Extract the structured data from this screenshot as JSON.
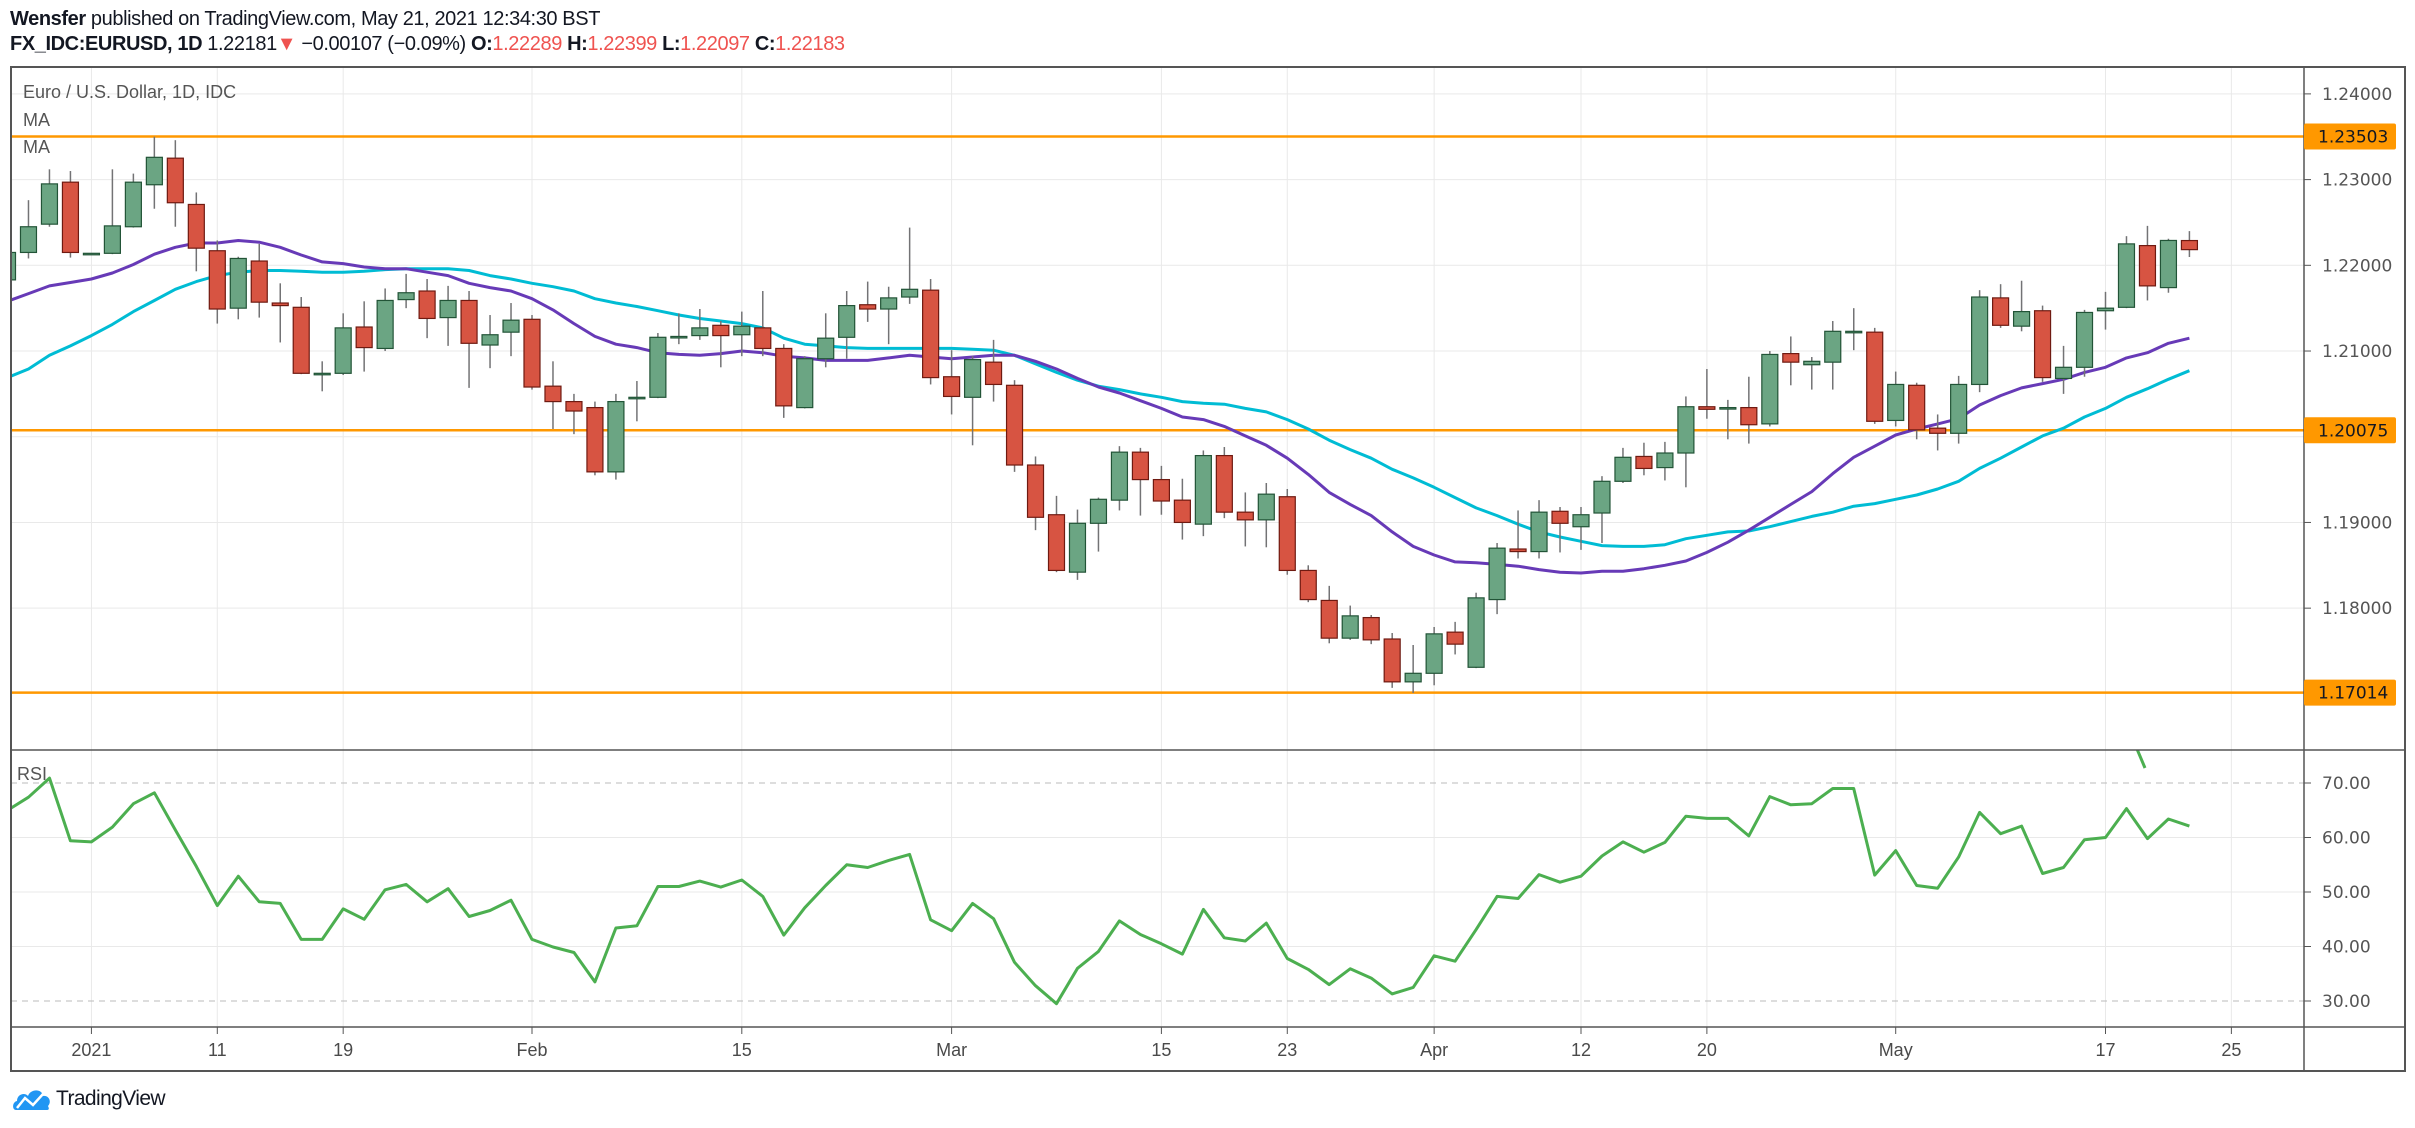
{
  "header": {
    "author": "Wensfer",
    "published": "published on TradingView.com, May 21, 2021 12:34:30 BST",
    "symbol": "FX_IDC:EURUSD, 1D",
    "last": "1.22181",
    "change": "−0.00107 (−0.09%)",
    "o_label": "O:",
    "o_value": "1.22289",
    "h_label": "H:",
    "h_value": "1.22399",
    "l_label": "L:",
    "l_value": "1.22097",
    "c_label": "C:",
    "c_value": "1.22183",
    "direction_icon": "triangle-down-icon"
  },
  "legend": {
    "title": "Euro / U.S. Dollar, 1D, IDC",
    "ma1": "MA",
    "ma2": "MA",
    "rsi": "RSI"
  },
  "footer": {
    "brand": "TradingView"
  },
  "colors": {
    "up": "#6ba583",
    "up_border": "#225437",
    "down": "#d75442",
    "down_border": "#6f1a11",
    "wick": "#737375",
    "ma1": "#673ab7",
    "ma2": "#00bcd4",
    "level": "#ff9800",
    "rsi": "#4caf50",
    "grid": "#e9e9e9",
    "axis": "#555555"
  },
  "chart_data": {
    "type": "candlestick",
    "title": "Euro / U.S. Dollar, 1D, IDC",
    "price_axis": {
      "ylim": [
        1.1665,
        1.2445
      ],
      "gridlines": [
        1.18,
        1.19,
        1.2,
        1.21,
        1.22,
        1.23,
        1.24
      ],
      "tick_labels": [
        {
          "value": 1.24,
          "label": "1.24000"
        },
        {
          "value": 1.23,
          "label": "1.23000"
        },
        {
          "value": 1.22,
          "label": "1.22000"
        },
        {
          "value": 1.21,
          "label": "1.21000"
        },
        {
          "value": 1.19,
          "label": "1.19000"
        },
        {
          "value": 1.18,
          "label": "1.18000"
        }
      ]
    },
    "horizontal_levels": [
      {
        "value": 1.23503,
        "label": "1.23503"
      },
      {
        "value": 1.20075,
        "label": "1.20075"
      },
      {
        "value": 1.17014,
        "label": "1.17014"
      }
    ],
    "time_axis": {
      "ticks": [
        {
          "label": "2021",
          "date": "2021-01-01"
        },
        {
          "label": "11",
          "date": "2021-01-11"
        },
        {
          "label": "19",
          "date": "2021-01-19"
        },
        {
          "label": "Feb",
          "date": "2021-02-01"
        },
        {
          "label": "15",
          "date": "2021-02-15"
        },
        {
          "label": "Mar",
          "date": "2021-03-01"
        },
        {
          "label": "15",
          "date": "2021-03-15"
        },
        {
          "label": "23",
          "date": "2021-03-23"
        },
        {
          "label": "Apr",
          "date": "2021-04-01"
        },
        {
          "label": "12",
          "date": "2021-04-12"
        },
        {
          "label": "20",
          "date": "2021-04-20"
        },
        {
          "label": "May",
          "date": "2021-05-03"
        },
        {
          "label": "17",
          "date": "2021-05-17"
        },
        {
          "label": "25",
          "date": "2021-05-25"
        }
      ]
    },
    "candle_fields": [
      "date",
      "open",
      "high",
      "low",
      "close"
    ],
    "candles": [
      [
        "2020-12-28",
        1.2183,
        1.222,
        1.218,
        1.2215
      ],
      [
        "2020-12-29",
        1.2215,
        1.2276,
        1.2208,
        1.2245
      ],
      [
        "2020-12-30",
        1.2248,
        1.2312,
        1.2245,
        1.2295
      ],
      [
        "2020-12-31",
        1.2297,
        1.231,
        1.2209,
        1.2215
      ],
      [
        "2021-01-01",
        1.2214,
        1.2214,
        1.2214,
        1.2214
      ],
      [
        "2021-01-04",
        1.2214,
        1.2312,
        1.2213,
        1.2246
      ],
      [
        "2021-01-05",
        1.2245,
        1.2307,
        1.2244,
        1.2297
      ],
      [
        "2021-01-06",
        1.2294,
        1.235,
        1.2266,
        1.2326
      ],
      [
        "2021-01-07",
        1.2325,
        1.2346,
        1.2245,
        1.2273
      ],
      [
        "2021-01-08",
        1.2271,
        1.2285,
        1.2193,
        1.222
      ],
      [
        "2021-01-11",
        1.2217,
        1.2229,
        1.2132,
        1.2149
      ],
      [
        "2021-01-12",
        1.215,
        1.221,
        1.2137,
        1.2208
      ],
      [
        "2021-01-13",
        1.2205,
        1.2225,
        1.2139,
        1.2157
      ],
      [
        "2021-01-14",
        1.2156,
        1.2179,
        1.211,
        1.2153
      ],
      [
        "2021-01-15",
        1.2151,
        1.2163,
        1.2073,
        1.2074
      ],
      [
        "2021-01-18",
        1.2074,
        1.2088,
        1.2053,
        1.2074
      ],
      [
        "2021-01-19",
        1.2074,
        1.2144,
        1.2072,
        1.2127
      ],
      [
        "2021-01-20",
        1.2128,
        1.2158,
        1.2076,
        1.2104
      ],
      [
        "2021-01-21",
        1.2103,
        1.2173,
        1.21,
        1.2159
      ],
      [
        "2021-01-22",
        1.216,
        1.219,
        1.215,
        1.2168
      ],
      [
        "2021-01-25",
        1.217,
        1.2184,
        1.2115,
        1.2138
      ],
      [
        "2021-01-26",
        1.2139,
        1.2176,
        1.2106,
        1.2159
      ],
      [
        "2021-01-27",
        1.2159,
        1.217,
        1.2057,
        1.2109
      ],
      [
        "2021-01-28",
        1.2107,
        1.2142,
        1.208,
        1.2119
      ],
      [
        "2021-01-29",
        1.2122,
        1.2156,
        1.2094,
        1.2136
      ],
      [
        "2021-02-01",
        1.2137,
        1.2142,
        1.2055,
        1.2058
      ],
      [
        "2021-02-02",
        1.2059,
        1.2088,
        1.2009,
        1.2041
      ],
      [
        "2021-02-03",
        1.2041,
        1.205,
        1.2003,
        1.203
      ],
      [
        "2021-02-04",
        1.2034,
        1.2041,
        1.1955,
        1.1959
      ],
      [
        "2021-02-05",
        1.1959,
        1.205,
        1.195,
        1.2041
      ],
      [
        "2021-02-08",
        1.2046,
        1.2065,
        1.2018,
        1.2046
      ],
      [
        "2021-02-09",
        1.2046,
        1.2121,
        1.2045,
        1.2116
      ],
      [
        "2021-02-10",
        1.2117,
        1.2144,
        1.2108,
        1.2117
      ],
      [
        "2021-02-11",
        1.2118,
        1.2149,
        1.2113,
        1.2127
      ],
      [
        "2021-02-12",
        1.213,
        1.2135,
        1.2081,
        1.2118
      ],
      [
        "2021-02-15",
        1.2119,
        1.2146,
        1.2094,
        1.2129
      ],
      [
        "2021-02-16",
        1.2127,
        1.217,
        1.2094,
        1.2103
      ],
      [
        "2021-02-17",
        1.2103,
        1.2108,
        1.2022,
        1.2036
      ],
      [
        "2021-02-18",
        1.2034,
        1.2094,
        1.2033,
        1.2091
      ],
      [
        "2021-02-19",
        1.2091,
        1.2144,
        1.2081,
        1.2115
      ],
      [
        "2021-02-22",
        1.2116,
        1.217,
        1.2091,
        1.2153
      ],
      [
        "2021-02-23",
        1.2154,
        1.2181,
        1.2134,
        1.2149
      ],
      [
        "2021-02-24",
        1.2149,
        1.2175,
        1.2108,
        1.2162
      ],
      [
        "2021-02-25",
        1.2163,
        1.2244,
        1.2155,
        1.2172
      ],
      [
        "2021-02-26",
        1.2171,
        1.2184,
        1.2061,
        1.2069
      ],
      [
        "2021-03-01",
        1.207,
        1.2101,
        1.2026,
        1.2047
      ],
      [
        "2021-03-02",
        1.2046,
        1.2094,
        1.199,
        1.209
      ],
      [
        "2021-03-03",
        1.2087,
        1.2113,
        1.2041,
        1.2061
      ],
      [
        "2021-03-04",
        1.206,
        1.2066,
        1.1959,
        1.1967
      ],
      [
        "2021-03-05",
        1.1967,
        1.1977,
        1.1891,
        1.1906
      ],
      [
        "2021-03-08",
        1.1909,
        1.1931,
        1.1842,
        1.1844
      ],
      [
        "2021-03-09",
        1.1842,
        1.1915,
        1.1833,
        1.1899
      ],
      [
        "2021-03-10",
        1.1899,
        1.1929,
        1.1866,
        1.1927
      ],
      [
        "2021-03-11",
        1.1926,
        1.1989,
        1.1914,
        1.1982
      ],
      [
        "2021-03-12",
        1.1982,
        1.1987,
        1.1908,
        1.195
      ],
      [
        "2021-03-15",
        1.195,
        1.1966,
        1.1909,
        1.1925
      ],
      [
        "2021-03-16",
        1.1926,
        1.1951,
        1.188,
        1.19
      ],
      [
        "2021-03-17",
        1.1898,
        1.1984,
        1.1884,
        1.1978
      ],
      [
        "2021-03-18",
        1.1978,
        1.1988,
        1.1905,
        1.1912
      ],
      [
        "2021-03-19",
        1.1912,
        1.1935,
        1.1872,
        1.1903
      ],
      [
        "2021-03-22",
        1.1903,
        1.1946,
        1.1871,
        1.1933
      ],
      [
        "2021-03-23",
        1.193,
        1.1939,
        1.1839,
        1.1844
      ],
      [
        "2021-03-24",
        1.1844,
        1.185,
        1.1807,
        1.181
      ],
      [
        "2021-03-25",
        1.1809,
        1.1826,
        1.1759,
        1.1765
      ],
      [
        "2021-03-26",
        1.1765,
        1.1803,
        1.1763,
        1.1791
      ],
      [
        "2021-03-29",
        1.1789,
        1.1792,
        1.1758,
        1.1763
      ],
      [
        "2021-03-30",
        1.1764,
        1.1771,
        1.1707,
        1.1714
      ],
      [
        "2021-03-31",
        1.1714,
        1.1757,
        1.1701,
        1.1724
      ],
      [
        "2021-04-01",
        1.1724,
        1.1778,
        1.171,
        1.177
      ],
      [
        "2021-04-02",
        1.1772,
        1.1784,
        1.1746,
        1.1758
      ],
      [
        "2021-04-05",
        1.1731,
        1.1818,
        1.173,
        1.1812
      ],
      [
        "2021-04-06",
        1.181,
        1.1876,
        1.1793,
        1.187
      ],
      [
        "2021-04-07",
        1.1869,
        1.1914,
        1.1858,
        1.1866
      ],
      [
        "2021-04-08",
        1.1866,
        1.1926,
        1.1858,
        1.1912
      ],
      [
        "2021-04-09",
        1.1913,
        1.1918,
        1.1865,
        1.1899
      ],
      [
        "2021-04-12",
        1.1895,
        1.1918,
        1.1868,
        1.1909
      ],
      [
        "2021-04-13",
        1.1911,
        1.1954,
        1.1876,
        1.1948
      ],
      [
        "2021-04-14",
        1.1948,
        1.1987,
        1.1946,
        1.1976
      ],
      [
        "2021-04-15",
        1.1977,
        1.1993,
        1.1955,
        1.1963
      ],
      [
        "2021-04-16",
        1.1964,
        1.1994,
        1.1949,
        1.1981
      ],
      [
        "2021-04-19",
        1.1981,
        1.2047,
        1.1941,
        1.2035
      ],
      [
        "2021-04-20",
        1.2035,
        1.2079,
        1.2021,
        1.2032
      ],
      [
        "2021-04-21",
        1.2034,
        1.2043,
        1.1997,
        1.2034
      ],
      [
        "2021-04-22",
        1.2034,
        1.207,
        1.1992,
        1.2014
      ],
      [
        "2021-04-23",
        1.2015,
        1.21,
        1.2012,
        1.2096
      ],
      [
        "2021-04-26",
        1.2097,
        1.2117,
        1.206,
        1.2087
      ],
      [
        "2021-04-27",
        1.2084,
        1.2093,
        1.2055,
        1.2088
      ],
      [
        "2021-04-28",
        1.2087,
        1.2135,
        1.2055,
        1.2123
      ],
      [
        "2021-04-29",
        1.2123,
        1.215,
        1.2101,
        1.2123
      ],
      [
        "2021-04-30",
        1.2122,
        1.2127,
        1.2015,
        1.2018
      ],
      [
        "2021-05-03",
        1.2019,
        1.2076,
        1.2012,
        1.2061
      ],
      [
        "2021-05-04",
        1.206,
        1.2063,
        1.1997,
        1.2008
      ],
      [
        "2021-05-05",
        1.201,
        1.2026,
        1.1984,
        1.2004
      ],
      [
        "2021-05-06",
        1.2004,
        1.2071,
        1.1992,
        1.2061
      ],
      [
        "2021-05-07",
        1.2061,
        1.2171,
        1.2052,
        1.2163
      ],
      [
        "2021-05-10",
        1.2162,
        1.2178,
        1.2127,
        1.213
      ],
      [
        "2021-05-11",
        1.2129,
        1.2182,
        1.2123,
        1.2146
      ],
      [
        "2021-05-12",
        1.2147,
        1.2153,
        1.2064,
        1.2069
      ],
      [
        "2021-05-13",
        1.2068,
        1.2106,
        1.205,
        1.2081
      ],
      [
        "2021-05-14",
        1.2081,
        1.2148,
        1.207,
        1.2145
      ],
      [
        "2021-05-17",
        1.2147,
        1.2169,
        1.2125,
        1.215
      ],
      [
        "2021-05-18",
        1.2151,
        1.2234,
        1.215,
        1.2225
      ],
      [
        "2021-05-19",
        1.2223,
        1.2246,
        1.2159,
        1.2176
      ],
      [
        "2021-05-20",
        1.2174,
        1.2231,
        1.2168,
        1.2229
      ],
      [
        "2021-05-21",
        1.22289,
        1.22399,
        1.22097,
        1.22183
      ]
    ],
    "ma1": [
      1.2158,
      1.2167,
      1.2176,
      1.218,
      1.2184,
      1.2191,
      1.2201,
      1.2213,
      1.2221,
      1.2226,
      1.2226,
      1.2229,
      1.2227,
      1.2221,
      1.2212,
      1.2204,
      1.2202,
      1.2198,
      1.2196,
      1.2196,
      1.2192,
      1.2188,
      1.2179,
      1.2174,
      1.217,
      1.2161,
      1.2148,
      1.2132,
      1.2117,
      1.2108,
      1.2104,
      1.2098,
      1.2096,
      1.2095,
      1.2097,
      1.21,
      1.2098,
      1.2094,
      1.2092,
      1.2089,
      1.2089,
      1.2089,
      1.2092,
      1.2095,
      1.2093,
      1.2091,
      1.2093,
      1.2095,
      1.2095,
      1.2088,
      1.2079,
      1.2068,
      1.2058,
      1.2051,
      1.2042,
      1.2033,
      1.2023,
      1.202,
      1.2012,
      1.2001,
      1.199,
      1.1975,
      1.1956,
      1.1935,
      1.1921,
      1.1908,
      1.1889,
      1.1872,
      1.1862,
      1.1854,
      1.1853,
      1.1851,
      1.1849,
      1.1845,
      1.1842,
      1.1841,
      1.1843,
      1.1843,
      1.1846,
      1.185,
      1.1855,
      1.1865,
      1.1877,
      1.1891,
      1.1906,
      1.1921,
      1.1936,
      1.1957,
      1.1976,
      1.1989,
      1.2002,
      1.2009,
      1.2015,
      1.2021,
      1.2037,
      1.2048,
      1.2057,
      1.2062,
      1.2067,
      1.2075,
      1.2081,
      1.2092,
      1.2098,
      1.2109,
      1.2115
    ],
    "ma2": [
      1.2069,
      1.2079,
      1.2095,
      1.2106,
      1.2118,
      1.2131,
      1.2146,
      1.2159,
      1.2172,
      1.2181,
      1.2188,
      1.2192,
      1.2194,
      1.2194,
      1.2193,
      1.2192,
      1.2192,
      1.2193,
      1.2195,
      1.2196,
      1.2196,
      1.2196,
      1.2194,
      1.2188,
      1.2184,
      1.2179,
      1.2175,
      1.217,
      1.2161,
      1.2156,
      1.2152,
      1.2147,
      1.2142,
      1.2138,
      1.2135,
      1.2132,
      1.2127,
      1.2115,
      1.2108,
      1.2106,
      1.2104,
      1.2103,
      1.2103,
      1.2103,
      1.2103,
      1.2103,
      1.2102,
      1.2101,
      1.2095,
      1.2085,
      1.2075,
      1.2066,
      1.2059,
      1.2055,
      1.205,
      1.2046,
      1.2041,
      1.2039,
      1.2038,
      1.2033,
      1.2029,
      1.202,
      1.2009,
      1.1996,
      1.1985,
      1.1975,
      1.1962,
      1.1952,
      1.1941,
      1.1929,
      1.1917,
      1.1908,
      1.1898,
      1.1889,
      1.1883,
      1.1878,
      1.1873,
      1.1872,
      1.1872,
      1.1874,
      1.1881,
      1.1885,
      1.1889,
      1.189,
      1.1895,
      1.1901,
      1.1907,
      1.1912,
      1.1919,
      1.1922,
      1.1927,
      1.1932,
      1.1939,
      1.1948,
      1.1963,
      1.1975,
      1.1988,
      1.2001,
      1.201,
      1.2023,
      1.2033,
      1.2046,
      1.2056,
      1.2067,
      1.2077
    ],
    "rsi_axis": {
      "ylim": [
        25,
        76
      ],
      "gridlines": [
        40,
        50,
        60
      ],
      "bands": [
        30,
        70
      ],
      "tick_labels": [
        {
          "value": 70,
          "label": "70.00"
        },
        {
          "value": 60,
          "label": "60.00"
        },
        {
          "value": 50,
          "label": "50.00"
        },
        {
          "value": 40,
          "label": "40.00"
        },
        {
          "value": 30,
          "label": "30.00"
        }
      ]
    },
    "rsi": [
      65.0,
      67.4,
      70.9,
      59.4,
      59.2,
      61.9,
      66.2,
      68.2,
      61.4,
      54.7,
      47.5,
      52.9,
      48.2,
      47.9,
      41.3,
      41.3,
      46.9,
      45.0,
      50.4,
      51.4,
      48.2,
      50.6,
      45.5,
      46.6,
      48.5,
      41.3,
      39.9,
      38.9,
      33.5,
      43.4,
      43.8,
      51.0,
      51.0,
      52.0,
      50.9,
      52.2,
      49.2,
      42.1,
      47.1,
      51.2,
      55.0,
      54.5,
      55.8,
      56.9,
      44.9,
      42.9,
      47.9,
      45.1,
      37.1,
      32.8,
      29.5,
      36.0,
      39.1,
      44.7,
      42.2,
      40.5,
      38.6,
      46.8,
      41.6,
      41.0,
      44.3,
      37.8,
      35.8,
      33.0,
      35.9,
      34.2,
      31.3,
      32.5,
      38.3,
      37.3,
      43.1,
      49.2,
      48.8,
      53.2,
      51.8,
      52.9,
      56.6,
      59.2,
      57.3,
      59.1,
      63.9,
      63.5,
      63.5,
      60.3,
      67.5,
      66.0,
      66.2,
      69.0,
      69.0,
      53.1,
      57.6,
      51.2,
      50.7,
      56.4,
      64.6,
      60.7,
      62.1,
      53.4,
      54.5,
      59.6,
      60.0,
      65.3,
      59.8,
      63.4,
      62.1
    ]
  }
}
